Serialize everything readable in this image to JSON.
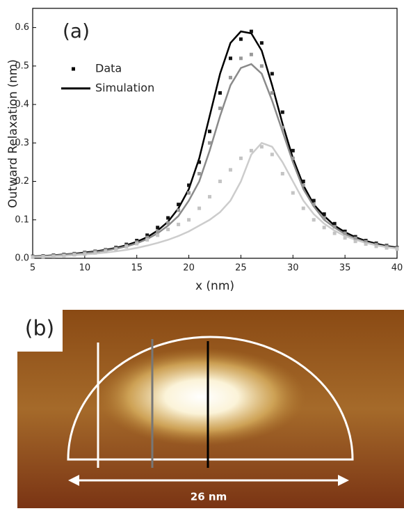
{
  "chart_data": {
    "type": "line",
    "panel_label": "(a)",
    "x_label": "x (nm)",
    "y_label": "Outward Relaxation (nm)",
    "x": [
      5,
      6,
      7,
      8,
      9,
      10,
      11,
      12,
      13,
      14,
      15,
      16,
      17,
      18,
      19,
      20,
      21,
      22,
      23,
      24,
      25,
      26,
      27,
      28,
      29,
      30,
      31,
      32,
      33,
      34,
      35,
      36,
      37,
      38,
      39,
      40
    ],
    "series": [
      {
        "style": "simulation",
        "color": "#000000",
        "values": [
          0.005,
          0.006,
          0.008,
          0.01,
          0.012,
          0.015,
          0.018,
          0.022,
          0.027,
          0.034,
          0.043,
          0.055,
          0.072,
          0.095,
          0.13,
          0.18,
          0.26,
          0.37,
          0.48,
          0.56,
          0.59,
          0.585,
          0.54,
          0.45,
          0.35,
          0.26,
          0.19,
          0.14,
          0.11,
          0.085,
          0.068,
          0.055,
          0.045,
          0.038,
          0.032,
          0.028
        ]
      },
      {
        "style": "simulation",
        "color": "#8a8a8a",
        "values": [
          0.004,
          0.005,
          0.007,
          0.009,
          0.011,
          0.013,
          0.016,
          0.02,
          0.025,
          0.031,
          0.039,
          0.05,
          0.065,
          0.085,
          0.11,
          0.15,
          0.2,
          0.28,
          0.37,
          0.45,
          0.495,
          0.505,
          0.48,
          0.41,
          0.33,
          0.25,
          0.18,
          0.135,
          0.1,
          0.08,
          0.063,
          0.051,
          0.042,
          0.035,
          0.03,
          0.026
        ]
      },
      {
        "style": "simulation",
        "color": "#cccccc",
        "values": [
          0.003,
          0.004,
          0.005,
          0.006,
          0.008,
          0.01,
          0.012,
          0.015,
          0.018,
          0.022,
          0.027,
          0.033,
          0.04,
          0.048,
          0.058,
          0.07,
          0.085,
          0.1,
          0.12,
          0.15,
          0.2,
          0.27,
          0.3,
          0.29,
          0.25,
          0.2,
          0.15,
          0.115,
          0.09,
          0.072,
          0.058,
          0.048,
          0.04,
          0.034,
          0.029,
          0.025
        ]
      },
      {
        "style": "data",
        "color": "#111111",
        "values": [
          0.005,
          0.006,
          0.008,
          0.01,
          0.012,
          0.015,
          0.018,
          0.022,
          0.028,
          0.036,
          0.046,
          0.06,
          0.08,
          0.105,
          0.14,
          0.19,
          0.25,
          0.33,
          0.43,
          0.52,
          0.57,
          0.59,
          0.56,
          0.48,
          0.38,
          0.28,
          0.2,
          0.15,
          0.115,
          0.09,
          0.07,
          0.056,
          0.046,
          0.039,
          0.033,
          0.028
        ]
      },
      {
        "style": "data",
        "color": "#999999",
        "values": [
          0.004,
          0.005,
          0.007,
          0.009,
          0.011,
          0.014,
          0.017,
          0.021,
          0.026,
          0.033,
          0.042,
          0.054,
          0.07,
          0.092,
          0.125,
          0.17,
          0.22,
          0.3,
          0.39,
          0.47,
          0.52,
          0.53,
          0.5,
          0.43,
          0.34,
          0.26,
          0.19,
          0.14,
          0.105,
          0.082,
          0.065,
          0.052,
          0.043,
          0.036,
          0.031,
          0.027
        ]
      },
      {
        "style": "data",
        "color": "#c4c4c4",
        "values": [
          0.003,
          0.004,
          0.005,
          0.007,
          0.009,
          0.011,
          0.014,
          0.018,
          0.023,
          0.03,
          0.038,
          0.048,
          0.06,
          0.075,
          0.088,
          0.1,
          0.13,
          0.16,
          0.2,
          0.23,
          0.26,
          0.28,
          0.29,
          0.27,
          0.22,
          0.17,
          0.13,
          0.1,
          0.08,
          0.065,
          0.053,
          0.044,
          0.037,
          0.031,
          0.027,
          0.024
        ]
      }
    ],
    "legend": [
      {
        "label": "Data",
        "style": "data"
      },
      {
        "label": "Simulation",
        "style": "simulation"
      }
    ],
    "xlim": [
      5,
      40
    ],
    "xticks": [
      5,
      10,
      15,
      20,
      25,
      30,
      35,
      40
    ],
    "ylim": [
      0,
      0.65
    ],
    "yticks": [
      {
        "value": 0,
        "label": "0.0"
      },
      0.1,
      0.2,
      0.3,
      0.4,
      0.5,
      0.6
    ]
  },
  "image_panel": {
    "label": "(b)",
    "scale_label": "26 nm"
  }
}
